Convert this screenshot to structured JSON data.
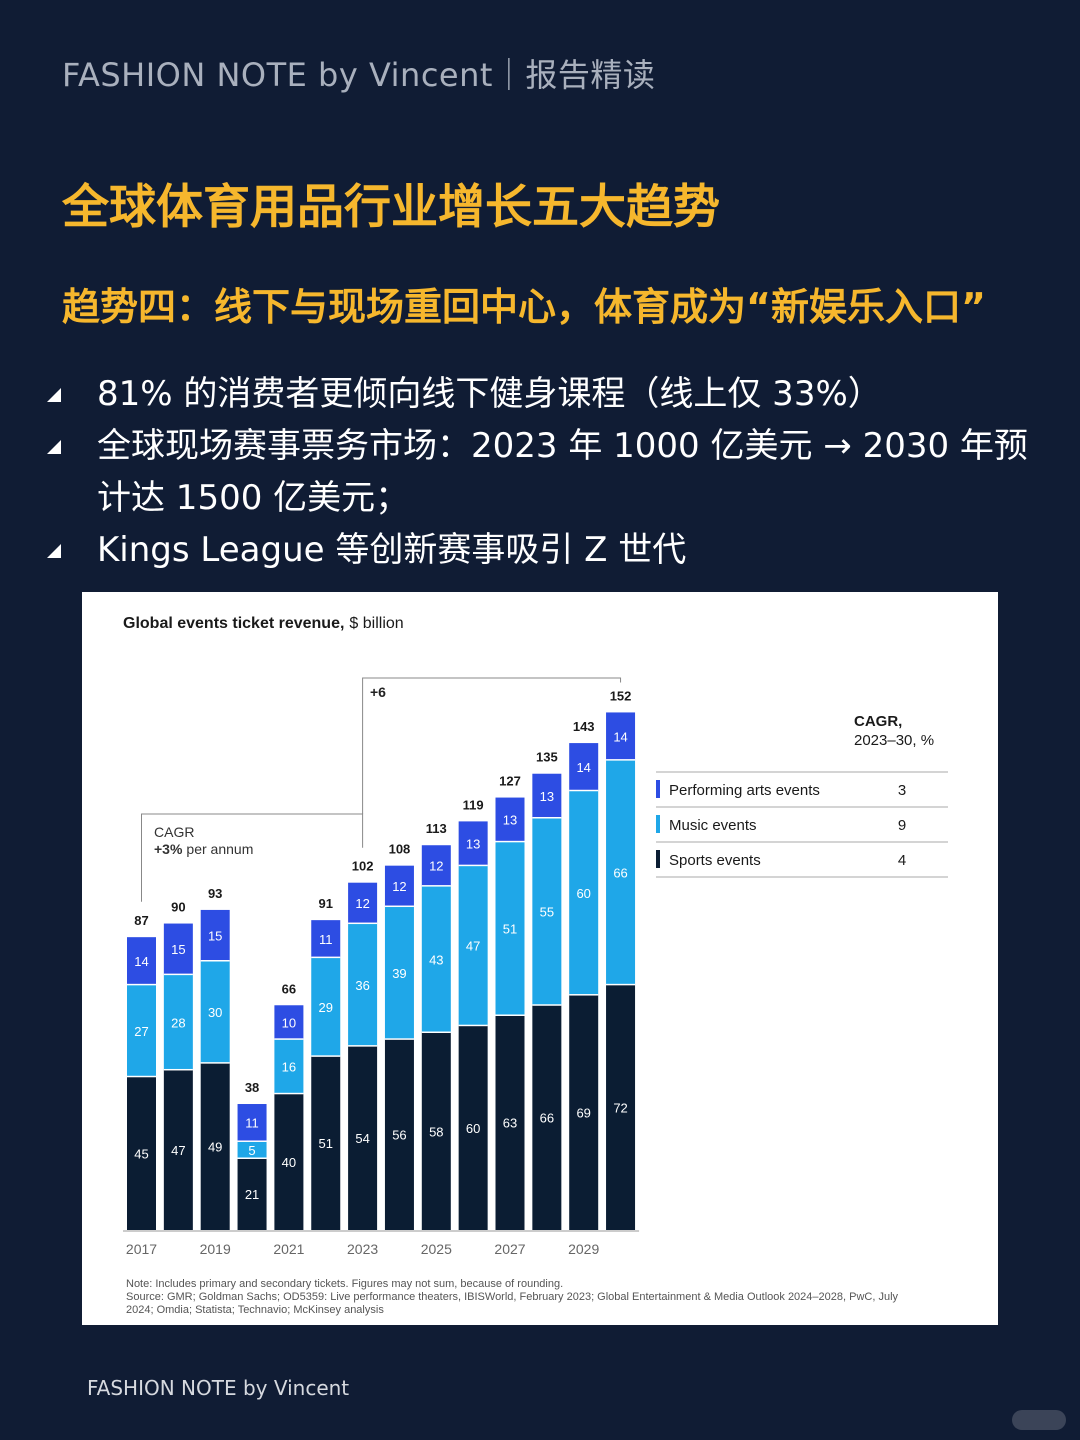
{
  "header": "FASHION NOTE by Vincent｜报告精读",
  "title": "全球体育用品行业增长五大趋势",
  "subtitle": "趋势四：线下与现场重回中心，体育成为“新娱乐入口”",
  "bullets": [
    "81% 的消费者更倾向线下健身课程（线上仅 33%）",
    "全球现场赛事票务市场：2023 年 1000 亿美元 → 2030 年预计达 1500 亿美元；",
    "Kings League 等创新赛事吸引 Z 世代"
  ],
  "footer": "FASHION NOTE by Vincent",
  "chart_data": {
    "type": "bar",
    "stacked": true,
    "title_bold": "Global events ticket revenue,",
    "title_unit": "$ billion",
    "categories": [
      "2017",
      "2018",
      "2019",
      "2020",
      "2021",
      "2022",
      "2023",
      "2024",
      "2025",
      "2026",
      "2027",
      "2028",
      "2029",
      "2030"
    ],
    "x_tick_labels": [
      "2017",
      "",
      "2019",
      "",
      "2021",
      "",
      "2023",
      "",
      "2025",
      "",
      "2027",
      "",
      "2029",
      ""
    ],
    "series": [
      {
        "name": "Sports events",
        "color": "#0b1d33",
        "values": [
          45,
          47,
          49,
          21,
          40,
          51,
          54,
          56,
          58,
          60,
          63,
          66,
          69,
          72
        ]
      },
      {
        "name": "Music events",
        "color": "#1fa7e8",
        "values": [
          27,
          28,
          30,
          5,
          16,
          29,
          36,
          39,
          43,
          47,
          51,
          55,
          60,
          66
        ]
      },
      {
        "name": "Performing arts events",
        "color": "#2d4de3",
        "values": [
          14,
          15,
          15,
          11,
          10,
          11,
          12,
          12,
          12,
          13,
          13,
          13,
          14,
          14
        ]
      }
    ],
    "totals": [
      87,
      90,
      93,
      38,
      66,
      91,
      102,
      108,
      113,
      119,
      127,
      135,
      143,
      152
    ],
    "ylim": [
      0,
      160
    ],
    "annotation_left": {
      "line1": "CAGR",
      "line2_bold": "+3%",
      "line2_rest": "per annum"
    },
    "annotation_right": "+6",
    "cagr_table": {
      "header1": "CAGR,",
      "header2": "2023–30, %",
      "rows": [
        {
          "label": "Performing arts events",
          "value": "3",
          "color": "#2d4de3"
        },
        {
          "label": "Music events",
          "value": "9",
          "color": "#1fa7e8"
        },
        {
          "label": "Sports events",
          "value": "4",
          "color": "#0b1d33"
        }
      ]
    },
    "note": "Note: Includes primary and secondary tickets. Figures may not sum, because of rounding.",
    "source_1": "Source: GMR; Goldman Sachs; OD5359: Live performance theaters, IBISWorld, February 2023; Global Entertainment & Media Outlook 2024–2028, PwC, July",
    "source_2": "2024; Omdia; Statista; Technavio; McKinsey analysis"
  }
}
